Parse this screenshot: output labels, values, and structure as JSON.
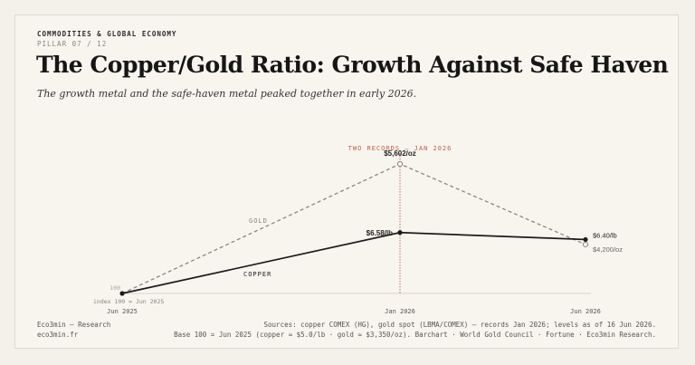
{
  "header": {
    "kicker": "COMMODITIES & GLOBAL ECONOMY",
    "pillar": "PILLAR 07 / 12",
    "title": "The Copper/Gold Ratio: Growth Against Safe Haven",
    "subtitle": "The growth metal and the safe-haven metal peaked together in early 2026."
  },
  "chart_data": {
    "type": "line",
    "categories": [
      "Jun 2025",
      "Jan 2026",
      "Jun 2026"
    ],
    "series": [
      {
        "name": "GOLD",
        "values": [
          100,
          167.2,
          125.4
        ],
        "point_labels": [
          "",
          "$5,602/oz",
          "$4,200/oz"
        ],
        "color": "#8a8680",
        "dashed": true
      },
      {
        "name": "COPPER",
        "values": [
          100,
          131.6,
          128
        ],
        "point_labels": [
          "",
          "$6.58/lb",
          "$6.40/lb"
        ],
        "color": "#1c1c1c",
        "dashed": false
      }
    ],
    "baseline": {
      "value": 100,
      "tick_label": "100",
      "note": "index 100 = Jun 2025"
    },
    "annotation": {
      "at": "Jan 2026",
      "label": "TWO RECORDS — JAN 2026",
      "color": "#c0604a"
    },
    "ylim": [
      100,
      167.2
    ],
    "grid": false,
    "legend": "inline labels"
  },
  "footer": {
    "left_line1": "Eco3min — Research",
    "left_line2": "eco3min.fr",
    "right_line1": "Sources: copper COMEX (HG), gold spot (LBMA/COMEX) — records Jan 2026; levels as of 16 Jun 2026.",
    "right_line2": "Base 100 = Jun 2025 (copper ≈ $5.0/lb · gold ≈ $3,350/oz). Barchart · World Gold Council · Fortune · Eco3min Research."
  }
}
